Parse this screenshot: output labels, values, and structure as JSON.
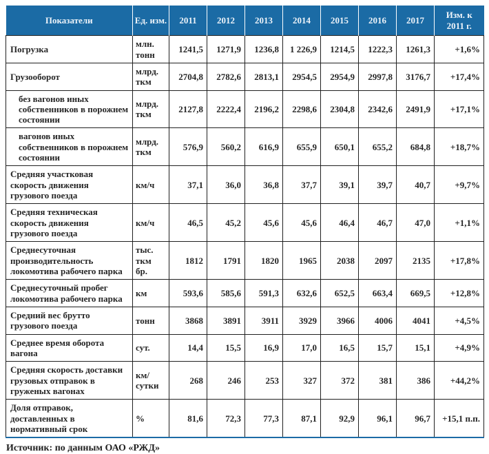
{
  "chart_data": {
    "type": "table",
    "title": "",
    "columns": [
      "Показатели",
      "Ед. изм.",
      "2011",
      "2012",
      "2013",
      "2014",
      "2015",
      "2016",
      "2017",
      "Изм. к\n2011 г."
    ],
    "rows": [
      {
        "indicator": "Погрузка",
        "unit": "млн.\nтонн",
        "indent": false,
        "values": [
          "1241,5",
          "1271,9",
          "1236,8",
          "1 226,9",
          "1214,5",
          "1222,3",
          "1261,3"
        ],
        "change": "+1,6%"
      },
      {
        "indicator": "Грузооборот",
        "unit": "млрд.\nткм",
        "indent": false,
        "values": [
          "2704,8",
          "2782,6",
          "2813,1",
          "2954,5",
          "2954,9",
          "2997,8",
          "3176,7"
        ],
        "change": "+17,4%"
      },
      {
        "indicator": "без вагонов иных собственников в порожнем состоянии",
        "unit": "млрд.\nткм",
        "indent": true,
        "values": [
          "2127,8",
          "2222,4",
          "2196,2",
          "2298,6",
          "2304,8",
          "2342,6",
          "2491,9"
        ],
        "change": "+17,1%"
      },
      {
        "indicator": "вагонов иных собственников в порожнем состоянии",
        "unit": "млрд.\nткм",
        "indent": true,
        "values": [
          "576,9",
          "560,2",
          "616,9",
          "655,9",
          "650,1",
          "655,2",
          "684,8"
        ],
        "change": "+18,7%"
      },
      {
        "indicator": "Средняя участковая скорость движения грузового поезда",
        "unit": "км/ч",
        "indent": false,
        "values": [
          "37,1",
          "36,0",
          "36,8",
          "37,7",
          "39,1",
          "39,7",
          "40,7"
        ],
        "change": "+9,7%"
      },
      {
        "indicator": "Средняя техническая скорость движения грузового поезда",
        "unit": "км/ч",
        "indent": false,
        "values": [
          "46,5",
          "45,2",
          "45,6",
          "45,6",
          "46,4",
          "46,7",
          "47,0"
        ],
        "change": "+1,1%"
      },
      {
        "indicator": "Среднесуточная производительность локомотива рабочего парка",
        "unit": "тыс. ткм\nбр.",
        "indent": false,
        "values": [
          "1812",
          "1791",
          "1820",
          "1965",
          "2038",
          "2097",
          "2135"
        ],
        "change": "+17,8%"
      },
      {
        "indicator": "Среднесуточный пробег локомотива рабочего парка",
        "unit": "км",
        "indent": false,
        "values": [
          "593,6",
          "585,6",
          "591,3",
          "632,6",
          "652,5",
          "663,4",
          "669,5"
        ],
        "change": "+12,8%"
      },
      {
        "indicator": "Средний вес брутто грузового поезда",
        "unit": "тонн",
        "indent": false,
        "values": [
          "3868",
          "3891",
          "3911",
          "3929",
          "3966",
          "4006",
          "4041"
        ],
        "change": "+4,5%"
      },
      {
        "indicator": "Среднее время оборота вагона",
        "unit": "сут.",
        "indent": false,
        "values": [
          "14,4",
          "15,5",
          "16,9",
          "17,0",
          "16,5",
          "15,7",
          "15,1"
        ],
        "change": "+4,9%"
      },
      {
        "indicator": "Средняя скорость доставки грузовых отправок в груженых вагонах",
        "unit": "км/\nсутки",
        "indent": false,
        "values": [
          "268",
          "246",
          "253",
          "327",
          "372",
          "381",
          "386"
        ],
        "change": "+44,2%"
      },
      {
        "indicator": "Доля отправок, доставленных в нормативный срок",
        "unit": "%",
        "indent": false,
        "values": [
          "81,6",
          "72,3",
          "77,3",
          "87,1",
          "92,9",
          "96,1",
          "96,7"
        ],
        "change": "+15,1 п.п."
      }
    ],
    "source": "Источник: по данным ОАО «РЖД»",
    "colors": {
      "header_bg": "#1b6ba5",
      "header_text": "#edf3f9",
      "body_border": "#1f1f1f",
      "bottom_rule": "#1b6ba5"
    }
  }
}
